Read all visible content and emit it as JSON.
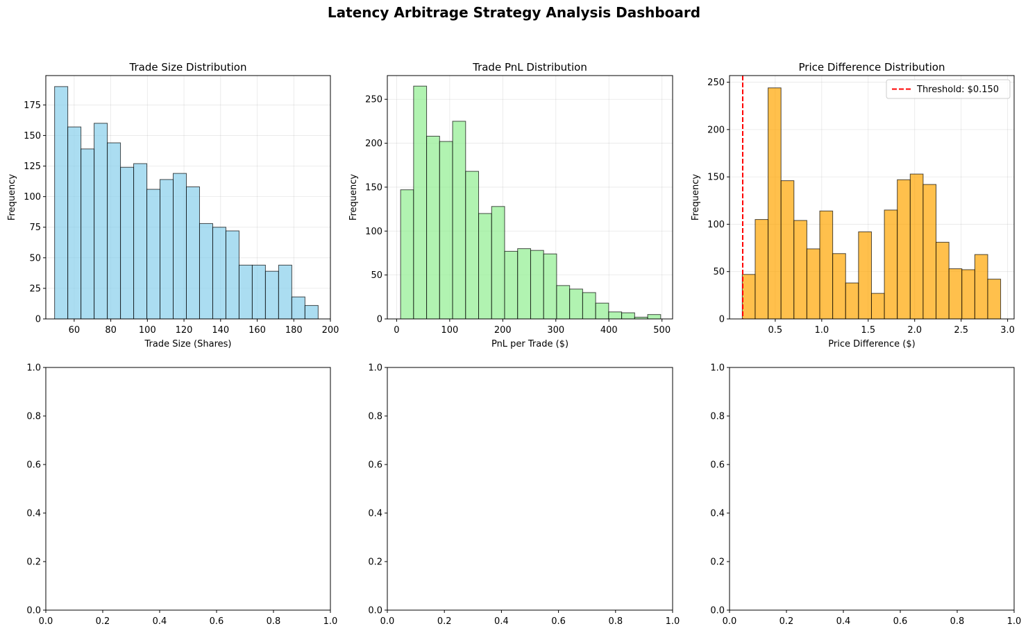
{
  "suptitle": "Latency Arbitrage Strategy Analysis Dashboard",
  "chart_data": [
    {
      "type": "bar",
      "title": "Trade Size Distribution",
      "xlabel": "Trade Size (Shares)",
      "ylabel": "Frequency",
      "xlim": [
        44.5,
        200
      ],
      "ylim": [
        0,
        199
      ],
      "xticks": [
        60,
        80,
        100,
        120,
        140,
        160,
        180,
        200
      ],
      "yticks": [
        0,
        25,
        50,
        75,
        100,
        125,
        150,
        175
      ],
      "bin_edges": [
        49.3,
        56.5,
        63.7,
        70.9,
        78.1,
        85.3,
        92.5,
        99.7,
        106.9,
        114.1,
        121.3,
        128.5,
        135.7,
        142.9,
        150.1,
        157.3,
        164.5,
        171.7,
        178.9,
        186.1,
        193.3
      ],
      "values": [
        190,
        157,
        139,
        160,
        144,
        124,
        127,
        106,
        114,
        119,
        108,
        78,
        75,
        72,
        44,
        44,
        39,
        44,
        18,
        11
      ],
      "color": "#87ceeb",
      "grid": true
    },
    {
      "type": "bar",
      "title": "Trade PnL Distribution",
      "xlabel": "PnL per Trade ($)",
      "ylabel": "Frequency",
      "xlim": [
        -17.5,
        520
      ],
      "ylim": [
        0,
        277
      ],
      "xticks": [
        0,
        100,
        200,
        300,
        400,
        500
      ],
      "yticks": [
        0,
        50,
        100,
        150,
        200,
        250
      ],
      "bin_edges": [
        7.5,
        32.0,
        56.5,
        81.0,
        105.5,
        130.0,
        154.5,
        179.0,
        203.5,
        228.0,
        252.5,
        277.0,
        301.5,
        326.0,
        350.5,
        375.0,
        399.5,
        424.0,
        448.5,
        473.0,
        497.5
      ],
      "values": [
        147,
        265,
        208,
        202,
        225,
        168,
        120,
        128,
        77,
        80,
        78,
        74,
        38,
        34,
        30,
        18,
        8,
        7,
        2,
        5
      ],
      "color": "#90ee90",
      "grid": true
    },
    {
      "type": "bar",
      "title": "Price Difference Distribution",
      "xlabel": "Price Difference ($)",
      "ylabel": "Frequency",
      "xlim": [
        0.008,
        3.07
      ],
      "ylim": [
        0,
        257
      ],
      "xticks": [
        0.5,
        1.0,
        1.5,
        2.0,
        2.5,
        3.0
      ],
      "xticklabels": [
        "0.5",
        "1.0",
        "1.5",
        "2.0",
        "2.5",
        "3.0"
      ],
      "yticks": [
        0,
        50,
        100,
        150,
        200,
        250
      ],
      "bin_edges": [
        0.145,
        0.284,
        0.423,
        0.562,
        0.701,
        0.84,
        0.979,
        1.118,
        1.257,
        1.396,
        1.535,
        1.674,
        1.813,
        1.952,
        2.091,
        2.23,
        2.369,
        2.508,
        2.647,
        2.786,
        2.925
      ],
      "values": [
        47,
        105,
        244,
        146,
        104,
        74,
        114,
        69,
        38,
        92,
        27,
        115,
        147,
        153,
        142,
        81,
        53,
        52,
        68,
        42
      ],
      "color": "#ffa500",
      "threshold": 0.15,
      "threshold_color": "#ff0000",
      "legend": {
        "label": "Threshold: $0.150",
        "placement": "upper right"
      },
      "grid": true
    },
    {
      "type": "empty",
      "xlim": [
        0,
        1
      ],
      "ylim": [
        0,
        1
      ],
      "xticks": [
        0.0,
        0.2,
        0.4,
        0.6,
        0.8,
        1.0
      ],
      "yticks": [
        0.0,
        0.2,
        0.4,
        0.6,
        0.8,
        1.0
      ],
      "xticklabels": [
        "0.0",
        "0.2",
        "0.4",
        "0.6",
        "0.8",
        "1.0"
      ],
      "yticklabels": [
        "0.0",
        "0.2",
        "0.4",
        "0.6",
        "0.8",
        "1.0"
      ]
    },
    {
      "type": "empty",
      "xlim": [
        0,
        1
      ],
      "ylim": [
        0,
        1
      ],
      "xticks": [
        0.0,
        0.2,
        0.4,
        0.6,
        0.8,
        1.0
      ],
      "yticks": [
        0.0,
        0.2,
        0.4,
        0.6,
        0.8,
        1.0
      ],
      "xticklabels": [
        "0.0",
        "0.2",
        "0.4",
        "0.6",
        "0.8",
        "1.0"
      ],
      "yticklabels": [
        "0.0",
        "0.2",
        "0.4",
        "0.6",
        "0.8",
        "1.0"
      ]
    },
    {
      "type": "empty",
      "xlim": [
        0,
        1
      ],
      "ylim": [
        0,
        1
      ],
      "xticks": [
        0.0,
        0.2,
        0.4,
        0.6,
        0.8,
        1.0
      ],
      "yticks": [
        0.0,
        0.2,
        0.4,
        0.6,
        0.8,
        1.0
      ],
      "xticklabels": [
        "0.0",
        "0.2",
        "0.4",
        "0.6",
        "0.8",
        "1.0"
      ],
      "yticklabels": [
        "0.0",
        "0.2",
        "0.4",
        "0.6",
        "0.8",
        "1.0"
      ]
    }
  ]
}
